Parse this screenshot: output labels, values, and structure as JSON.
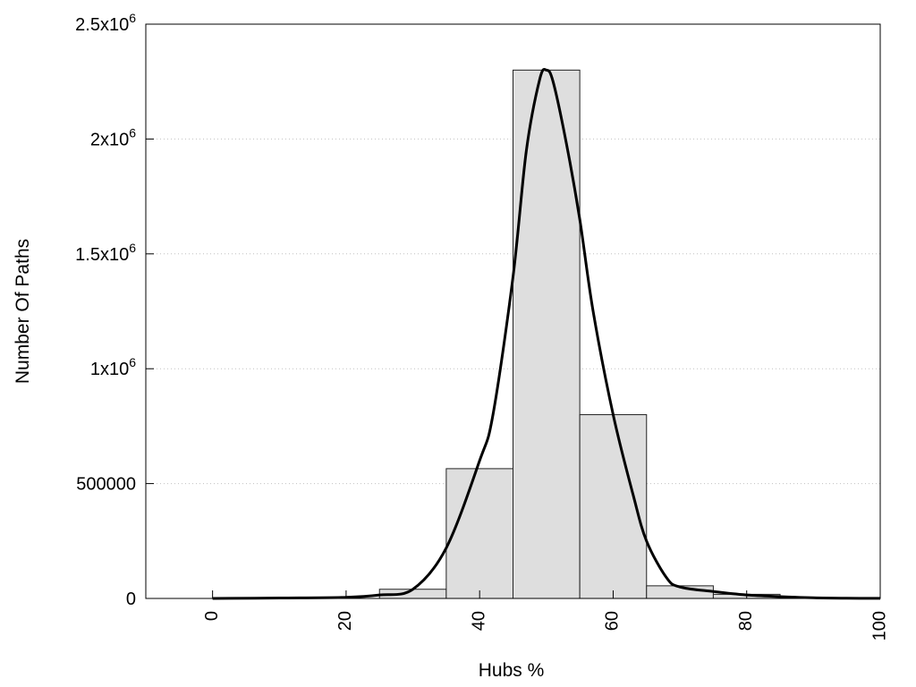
{
  "chart_data": {
    "type": "bar",
    "xlabel": "Hubs %",
    "ylabel": "Number Of Paths",
    "xlim": [
      -10,
      100
    ],
    "ylim": [
      0,
      2500000
    ],
    "grid": "horizontal-dotted",
    "x_ticks": [
      0,
      20,
      40,
      60,
      80,
      100
    ],
    "x_tick_labels": [
      "0",
      "20",
      "40",
      "60",
      "80",
      "100"
    ],
    "y_ticks": [
      0,
      500000,
      1000000,
      1500000,
      2000000,
      2500000
    ],
    "y_tick_labels": [
      {
        "base": "0",
        "exp": ""
      },
      {
        "base": "500000",
        "exp": ""
      },
      {
        "base": "1x10",
        "exp": "6"
      },
      {
        "base": "1.5x10",
        "exp": "6"
      },
      {
        "base": "2x10",
        "exp": "6"
      },
      {
        "base": "2.5x10",
        "exp": "6"
      }
    ],
    "bars": [
      {
        "x0": 25,
        "x1": 35,
        "value": 40000
      },
      {
        "x0": 35,
        "x1": 45,
        "value": 565000
      },
      {
        "x0": 45,
        "x1": 55,
        "value": 2300000
      },
      {
        "x0": 55,
        "x1": 65,
        "value": 800000
      },
      {
        "x0": 65,
        "x1": 75,
        "value": 55000
      },
      {
        "x0": 75,
        "x1": 85,
        "value": 18000
      },
      {
        "x0": 85,
        "x1": 95,
        "value": 3000
      }
    ],
    "curve": {
      "x": [
        0,
        10,
        20,
        25,
        30,
        35,
        40,
        42,
        45,
        47,
        49,
        50,
        51,
        53,
        55,
        57,
        60,
        63,
        65,
        68,
        70,
        75,
        80,
        85,
        90,
        95,
        100
      ],
      "y": [
        0,
        2000,
        5000,
        15000,
        40000,
        220000,
        600000,
        800000,
        1400000,
        1950000,
        2260000,
        2300000,
        2250000,
        1980000,
        1650000,
        1250000,
        800000,
        450000,
        250000,
        90000,
        50000,
        30000,
        15000,
        8000,
        3000,
        1000,
        500
      ]
    },
    "colors": {
      "bar_fill": "#dedede",
      "bar_stroke": "#222222",
      "curve": "#000000",
      "grid": "#c0c0c0"
    }
  }
}
